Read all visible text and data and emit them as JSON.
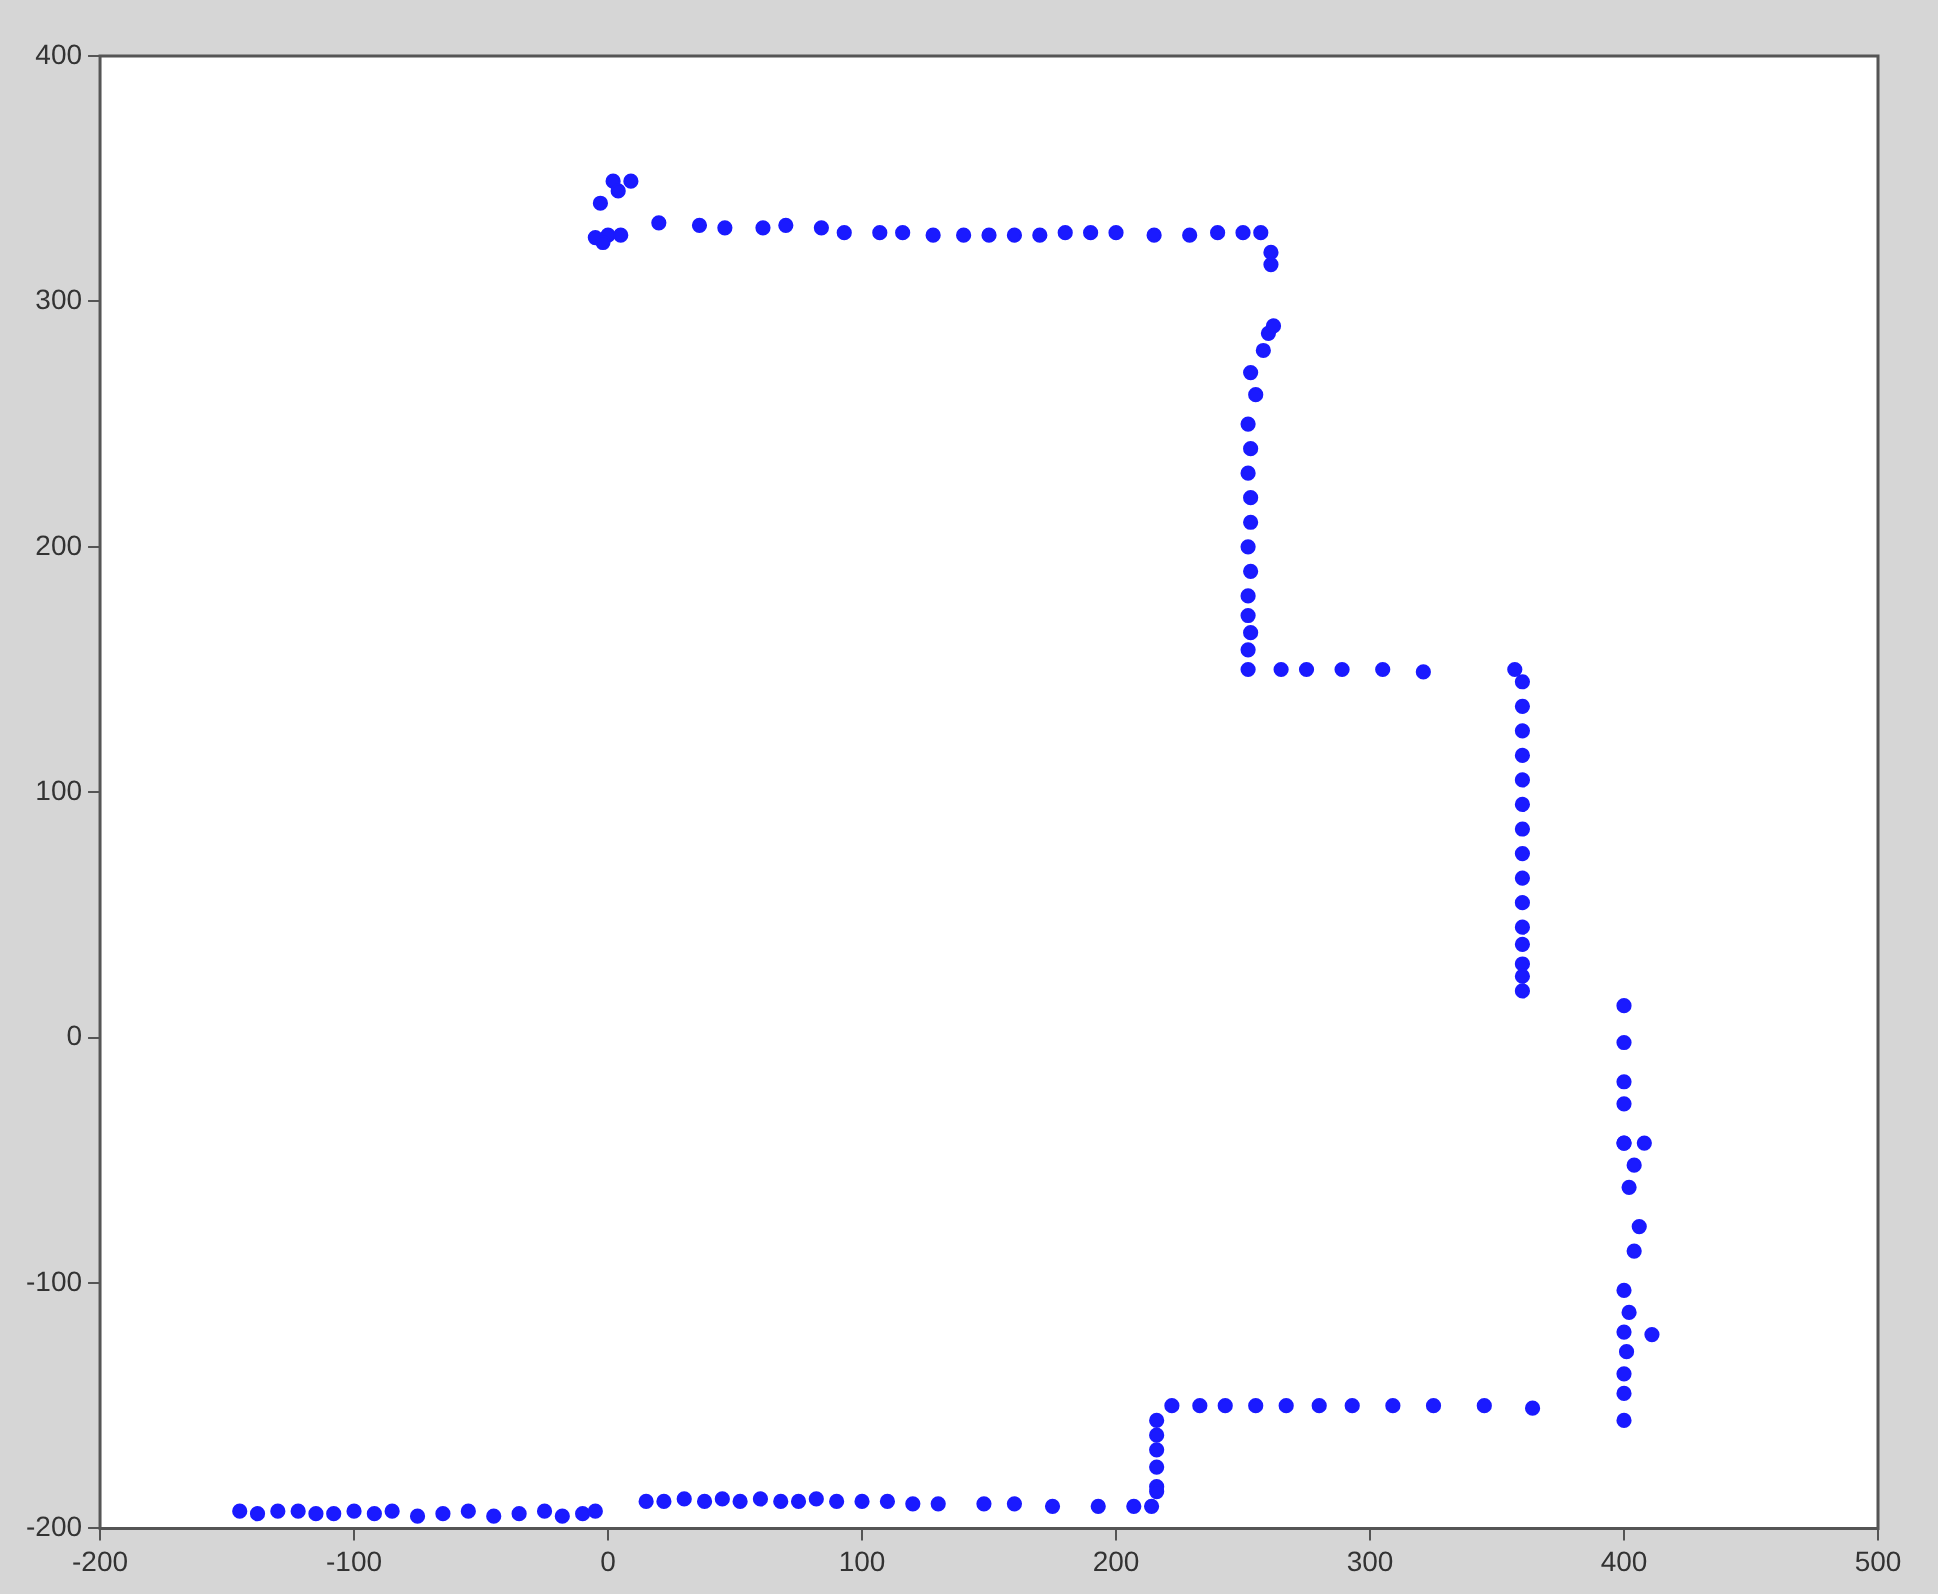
{
  "chart_data": {
    "type": "scatter",
    "marker": "circle",
    "grid": false,
    "legend": false,
    "xlim": [
      -200,
      500
    ],
    "xticks": [
      -200,
      -100,
      0,
      100,
      200,
      300,
      400,
      500
    ],
    "ylim": [
      -200,
      400
    ],
    "yticks": [
      -200,
      -100,
      0,
      100,
      200,
      300,
      400
    ],
    "series": [
      {
        "color": "#1a1aff",
        "x": [
          -145,
          -138,
          -130,
          -122,
          -115,
          -108,
          -100,
          -92,
          -85,
          -75,
          -65,
          -55,
          -45,
          -35,
          -25,
          -18,
          -10,
          -5,
          15,
          22,
          30,
          38,
          45,
          52,
          60,
          68,
          75,
          82,
          90,
          100,
          110,
          120,
          130,
          148,
          160,
          175,
          193,
          207,
          214,
          216,
          216,
          216,
          216,
          216,
          216,
          222,
          233,
          243,
          255,
          267,
          280,
          293,
          309,
          325,
          345,
          364,
          400,
          400,
          400,
          400,
          400,
          408,
          404,
          402,
          406,
          404,
          400,
          402,
          400,
          401,
          400,
          411,
          400,
          400,
          400,
          357,
          360,
          360,
          360,
          360,
          360,
          360,
          360,
          360,
          360,
          360,
          360,
          360,
          360,
          360,
          360,
          265,
          275,
          289,
          305,
          321,
          252,
          252,
          253,
          252,
          252,
          253,
          252,
          253,
          253,
          252,
          253,
          252,
          255,
          253,
          258,
          260,
          262,
          261,
          261,
          257,
          250,
          240,
          229,
          215,
          200,
          190,
          180,
          170,
          160,
          150,
          140,
          128,
          116,
          107,
          93,
          84,
          70,
          61,
          46,
          36,
          20,
          -5,
          0,
          5,
          -3,
          2,
          9,
          4,
          -2
        ],
        "values": [
          -193,
          -194,
          -193,
          -193,
          -194,
          -194,
          -193,
          -194,
          -193,
          -195,
          -194,
          -193,
          -195,
          -194,
          -193,
          -195,
          -194,
          -193,
          -189,
          -189,
          -188,
          -189,
          -188,
          -189,
          -188,
          -189,
          -189,
          -188,
          -189,
          -189,
          -189,
          -190,
          -190,
          -190,
          -190,
          -191,
          -191,
          -191,
          -191,
          -183,
          -175,
          -168,
          -162,
          -156,
          -185,
          -150,
          -150,
          -150,
          -150,
          -150,
          -150,
          -150,
          -150,
          -150,
          -150,
          -151,
          13,
          -2,
          -18,
          -27,
          -43,
          -43,
          -52,
          -61,
          -77,
          -87,
          -103,
          -112,
          -120,
          -128,
          -137,
          -121,
          -145,
          -156,
          -43,
          150,
          145,
          135,
          125,
          115,
          105,
          95,
          85,
          75,
          65,
          55,
          45,
          38,
          30,
          25,
          19,
          150,
          150,
          150,
          150,
          149,
          150,
          158,
          165,
          172,
          180,
          190,
          200,
          210,
          220,
          230,
          240,
          250,
          262,
          271,
          280,
          287,
          290,
          315,
          320,
          328,
          328,
          328,
          327,
          327,
          328,
          328,
          328,
          327,
          327,
          327,
          327,
          327,
          328,
          328,
          328,
          330,
          331,
          330,
          330,
          331,
          332,
          326,
          327,
          327,
          340,
          349,
          349,
          345,
          324
        ]
      }
    ]
  }
}
